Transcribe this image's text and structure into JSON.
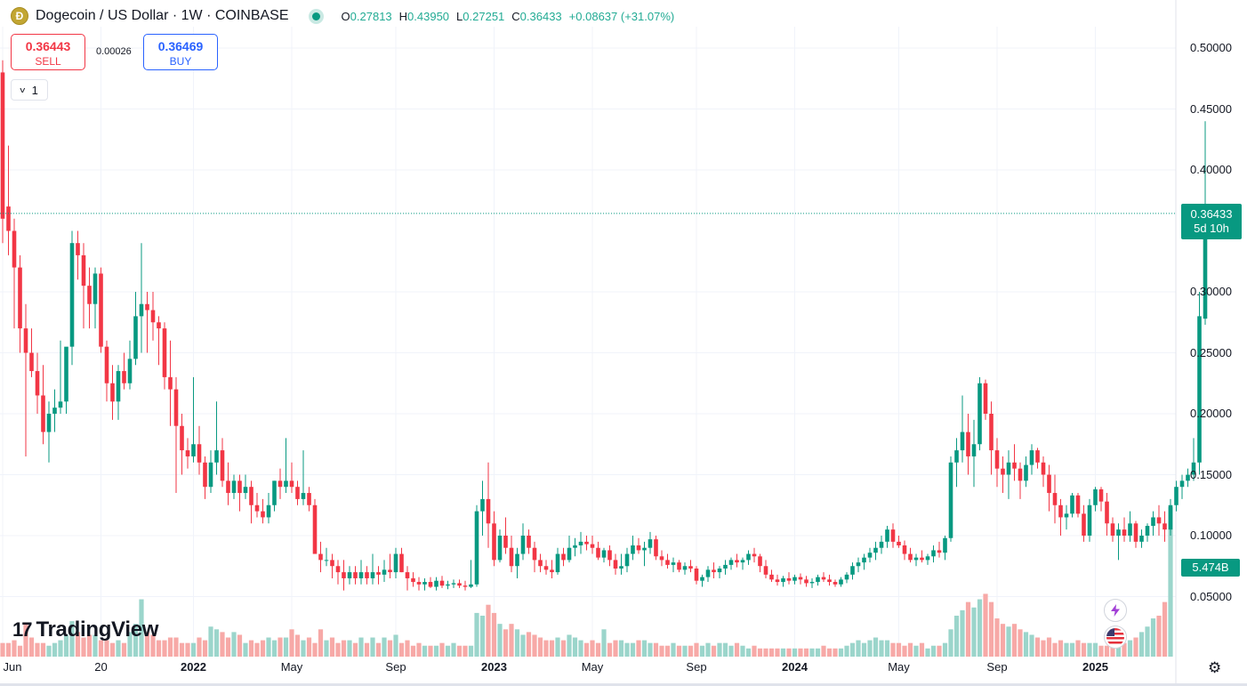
{
  "header": {
    "coin_icon": "dogecoin-icon",
    "symbol_title": "Dogecoin / US Dollar · 1W · COINBASE",
    "ohlc": {
      "o_label": "O",
      "o_value": "0.27813",
      "h_label": "H",
      "h_value": "0.43950",
      "l_label": "L",
      "l_value": "0.27251",
      "c_label": "C",
      "c_value": "0.36433",
      "change": "+0.08637 (+31.07%)"
    }
  },
  "trade": {
    "sell_price": "0.36443",
    "sell_label": "SELL",
    "spread": "0.00026",
    "buy_price": "0.36469",
    "buy_label": "BUY"
  },
  "indicator_toggle": "1",
  "price_tag": {
    "price": "0.36433",
    "countdown": "5d 10h"
  },
  "volume_tag": "5.474B",
  "logo_text": "TradingView",
  "colors": {
    "up": "#089981",
    "down": "#f23645",
    "up_volume": "#9bd5cb",
    "down_volume": "#f7a9a7",
    "grid": "#f0f3fa"
  },
  "chart_data": {
    "type": "candlestick",
    "title": "Dogecoin / US Dollar · 1W · COINBASE",
    "y_ticks": [
      "0.50000",
      "0.45000",
      "0.40000",
      "0.30000",
      "0.25000",
      "0.20000",
      "0.15000",
      "0.10000",
      "0.05000"
    ],
    "ylim": [
      0.0,
      0.525
    ],
    "x_ticks": [
      {
        "label": "Jun",
        "bold": false,
        "week": 0
      },
      {
        "label": "20",
        "bold": false,
        "week": 17
      },
      {
        "label": "2022",
        "bold": true,
        "week": 33
      },
      {
        "label": "May",
        "bold": false,
        "week": 50
      },
      {
        "label": "Sep",
        "bold": false,
        "week": 68
      },
      {
        "label": "2023",
        "bold": true,
        "week": 85
      },
      {
        "label": "May",
        "bold": false,
        "week": 102
      },
      {
        "label": "Sep",
        "bold": false,
        "week": 120
      },
      {
        "label": "2024",
        "bold": true,
        "week": 137
      },
      {
        "label": "May",
        "bold": false,
        "week": 155
      },
      {
        "label": "Sep",
        "bold": false,
        "week": 172
      },
      {
        "label": "2025",
        "bold": true,
        "week": 189
      }
    ],
    "grid": true,
    "legend": "none",
    "last_close": 0.36433,
    "candles": [
      [
        0.48,
        0.49,
        0.34,
        0.36
      ],
      [
        0.37,
        0.42,
        0.33,
        0.35
      ],
      [
        0.35,
        0.36,
        0.27,
        0.32
      ],
      [
        0.32,
        0.33,
        0.25,
        0.27
      ],
      [
        0.27,
        0.29,
        0.165,
        0.25
      ],
      [
        0.25,
        0.27,
        0.23,
        0.235
      ],
      [
        0.235,
        0.25,
        0.2,
        0.215
      ],
      [
        0.215,
        0.24,
        0.175,
        0.185
      ],
      [
        0.185,
        0.21,
        0.16,
        0.2
      ],
      [
        0.2,
        0.22,
        0.185,
        0.205
      ],
      [
        0.205,
        0.26,
        0.2,
        0.21
      ],
      [
        0.21,
        0.25,
        0.2,
        0.255
      ],
      [
        0.255,
        0.35,
        0.24,
        0.34
      ],
      [
        0.34,
        0.35,
        0.31,
        0.33
      ],
      [
        0.33,
        0.34,
        0.27,
        0.305
      ],
      [
        0.305,
        0.32,
        0.27,
        0.29
      ],
      [
        0.29,
        0.32,
        0.27,
        0.315
      ],
      [
        0.315,
        0.32,
        0.25,
        0.255
      ],
      [
        0.255,
        0.26,
        0.21,
        0.225
      ],
      [
        0.225,
        0.24,
        0.195,
        0.21
      ],
      [
        0.21,
        0.24,
        0.195,
        0.235
      ],
      [
        0.235,
        0.25,
        0.22,
        0.225
      ],
      [
        0.225,
        0.26,
        0.22,
        0.245
      ],
      [
        0.245,
        0.3,
        0.24,
        0.28
      ],
      [
        0.28,
        0.34,
        0.25,
        0.29
      ],
      [
        0.29,
        0.3,
        0.25,
        0.285
      ],
      [
        0.285,
        0.3,
        0.26,
        0.275
      ],
      [
        0.275,
        0.28,
        0.24,
        0.27
      ],
      [
        0.27,
        0.275,
        0.22,
        0.23
      ],
      [
        0.23,
        0.26,
        0.19,
        0.22
      ],
      [
        0.22,
        0.23,
        0.135,
        0.19
      ],
      [
        0.19,
        0.2,
        0.15,
        0.17
      ],
      [
        0.17,
        0.18,
        0.155,
        0.165
      ],
      [
        0.165,
        0.23,
        0.16,
        0.175
      ],
      [
        0.175,
        0.19,
        0.15,
        0.16
      ],
      [
        0.16,
        0.165,
        0.13,
        0.14
      ],
      [
        0.14,
        0.17,
        0.135,
        0.16
      ],
      [
        0.16,
        0.21,
        0.15,
        0.17
      ],
      [
        0.17,
        0.18,
        0.14,
        0.145
      ],
      [
        0.145,
        0.16,
        0.125,
        0.135
      ],
      [
        0.135,
        0.15,
        0.13,
        0.145
      ],
      [
        0.145,
        0.15,
        0.12,
        0.135
      ],
      [
        0.135,
        0.15,
        0.13,
        0.14
      ],
      [
        0.14,
        0.145,
        0.11,
        0.125
      ],
      [
        0.125,
        0.135,
        0.115,
        0.12
      ],
      [
        0.12,
        0.13,
        0.11,
        0.115
      ],
      [
        0.115,
        0.135,
        0.11,
        0.125
      ],
      [
        0.125,
        0.145,
        0.12,
        0.145
      ],
      [
        0.145,
        0.155,
        0.13,
        0.14
      ],
      [
        0.14,
        0.18,
        0.135,
        0.145
      ],
      [
        0.145,
        0.16,
        0.135,
        0.14
      ],
      [
        0.14,
        0.145,
        0.125,
        0.13
      ],
      [
        0.13,
        0.17,
        0.125,
        0.135
      ],
      [
        0.135,
        0.14,
        0.12,
        0.125
      ],
      [
        0.125,
        0.13,
        0.085,
        0.085
      ],
      [
        0.085,
        0.095,
        0.07,
        0.08
      ],
      [
        0.08,
        0.09,
        0.075,
        0.08
      ],
      [
        0.08,
        0.085,
        0.065,
        0.075
      ],
      [
        0.075,
        0.08,
        0.06,
        0.07
      ],
      [
        0.07,
        0.08,
        0.055,
        0.065
      ],
      [
        0.065,
        0.075,
        0.06,
        0.07
      ],
      [
        0.07,
        0.075,
        0.06,
        0.065
      ],
      [
        0.065,
        0.08,
        0.06,
        0.07
      ],
      [
        0.07,
        0.075,
        0.06,
        0.065
      ],
      [
        0.065,
        0.085,
        0.06,
        0.07
      ],
      [
        0.07,
        0.075,
        0.06,
        0.068
      ],
      [
        0.068,
        0.08,
        0.062,
        0.072
      ],
      [
        0.072,
        0.085,
        0.065,
        0.07
      ],
      [
        0.07,
        0.09,
        0.065,
        0.085
      ],
      [
        0.085,
        0.09,
        0.07,
        0.07
      ],
      [
        0.07,
        0.075,
        0.055,
        0.065
      ],
      [
        0.065,
        0.07,
        0.058,
        0.062
      ],
      [
        0.062,
        0.066,
        0.055,
        0.06
      ],
      [
        0.06,
        0.065,
        0.055,
        0.062
      ],
      [
        0.062,
        0.066,
        0.057,
        0.058
      ],
      [
        0.058,
        0.066,
        0.055,
        0.063
      ],
      [
        0.063,
        0.067,
        0.057,
        0.059
      ],
      [
        0.059,
        0.063,
        0.056,
        0.06
      ],
      [
        0.06,
        0.064,
        0.057,
        0.061
      ],
      [
        0.061,
        0.064,
        0.057,
        0.059
      ],
      [
        0.059,
        0.063,
        0.055,
        0.058
      ],
      [
        0.058,
        0.08,
        0.057,
        0.06
      ],
      [
        0.06,
        0.125,
        0.058,
        0.12
      ],
      [
        0.12,
        0.145,
        0.1,
        0.13
      ],
      [
        0.13,
        0.16,
        0.09,
        0.11
      ],
      [
        0.11,
        0.12,
        0.075,
        0.08
      ],
      [
        0.08,
        0.105,
        0.078,
        0.1
      ],
      [
        0.1,
        0.115,
        0.085,
        0.09
      ],
      [
        0.09,
        0.1,
        0.07,
        0.075
      ],
      [
        0.075,
        0.09,
        0.065,
        0.085
      ],
      [
        0.085,
        0.11,
        0.08,
        0.1
      ],
      [
        0.1,
        0.105,
        0.085,
        0.09
      ],
      [
        0.09,
        0.095,
        0.07,
        0.08
      ],
      [
        0.08,
        0.085,
        0.07,
        0.075
      ],
      [
        0.075,
        0.08,
        0.068,
        0.072
      ],
      [
        0.072,
        0.08,
        0.065,
        0.07
      ],
      [
        0.07,
        0.09,
        0.068,
        0.085
      ],
      [
        0.085,
        0.09,
        0.075,
        0.08
      ],
      [
        0.08,
        0.1,
        0.078,
        0.09
      ],
      [
        0.09,
        0.098,
        0.083,
        0.092
      ],
      [
        0.092,
        0.103,
        0.085,
        0.095
      ],
      [
        0.095,
        0.1,
        0.088,
        0.093
      ],
      [
        0.093,
        0.1,
        0.085,
        0.09
      ],
      [
        0.09,
        0.095,
        0.08,
        0.082
      ],
      [
        0.082,
        0.09,
        0.078,
        0.088
      ],
      [
        0.088,
        0.092,
        0.075,
        0.08
      ],
      [
        0.08,
        0.085,
        0.068,
        0.073
      ],
      [
        0.073,
        0.085,
        0.068,
        0.075
      ],
      [
        0.075,
        0.09,
        0.07,
        0.085
      ],
      [
        0.085,
        0.1,
        0.08,
        0.092
      ],
      [
        0.092,
        0.098,
        0.085,
        0.088
      ],
      [
        0.088,
        0.095,
        0.075,
        0.09
      ],
      [
        0.09,
        0.103,
        0.085,
        0.097
      ],
      [
        0.097,
        0.1,
        0.08,
        0.083
      ],
      [
        0.083,
        0.088,
        0.075,
        0.08
      ],
      [
        0.08,
        0.085,
        0.073,
        0.076
      ],
      [
        0.076,
        0.082,
        0.07,
        0.078
      ],
      [
        0.078,
        0.08,
        0.07,
        0.072
      ],
      [
        0.072,
        0.078,
        0.068,
        0.075
      ],
      [
        0.075,
        0.08,
        0.07,
        0.073
      ],
      [
        0.073,
        0.075,
        0.06,
        0.063
      ],
      [
        0.063,
        0.068,
        0.058,
        0.066
      ],
      [
        0.066,
        0.075,
        0.062,
        0.072
      ],
      [
        0.072,
        0.078,
        0.065,
        0.07
      ],
      [
        0.07,
        0.075,
        0.065,
        0.073
      ],
      [
        0.073,
        0.08,
        0.068,
        0.076
      ],
      [
        0.076,
        0.082,
        0.072,
        0.08
      ],
      [
        0.08,
        0.085,
        0.074,
        0.078
      ],
      [
        0.078,
        0.082,
        0.072,
        0.08
      ],
      [
        0.08,
        0.088,
        0.076,
        0.085
      ],
      [
        0.085,
        0.09,
        0.078,
        0.083
      ],
      [
        0.083,
        0.085,
        0.07,
        0.075
      ],
      [
        0.075,
        0.08,
        0.065,
        0.068
      ],
      [
        0.068,
        0.072,
        0.062,
        0.064
      ],
      [
        0.064,
        0.068,
        0.059,
        0.062
      ],
      [
        0.062,
        0.067,
        0.058,
        0.065
      ],
      [
        0.065,
        0.07,
        0.06,
        0.063
      ],
      [
        0.063,
        0.068,
        0.06,
        0.066
      ],
      [
        0.066,
        0.069,
        0.06,
        0.064
      ],
      [
        0.064,
        0.067,
        0.058,
        0.061
      ],
      [
        0.061,
        0.065,
        0.057,
        0.062
      ],
      [
        0.062,
        0.068,
        0.059,
        0.066
      ],
      [
        0.066,
        0.07,
        0.062,
        0.064
      ],
      [
        0.064,
        0.068,
        0.059,
        0.062
      ],
      [
        0.062,
        0.064,
        0.058,
        0.06
      ],
      [
        0.06,
        0.066,
        0.058,
        0.064
      ],
      [
        0.064,
        0.07,
        0.061,
        0.068
      ],
      [
        0.068,
        0.078,
        0.064,
        0.075
      ],
      [
        0.075,
        0.082,
        0.07,
        0.078
      ],
      [
        0.078,
        0.085,
        0.072,
        0.082
      ],
      [
        0.082,
        0.09,
        0.078,
        0.086
      ],
      [
        0.086,
        0.095,
        0.08,
        0.09
      ],
      [
        0.09,
        0.1,
        0.085,
        0.095
      ],
      [
        0.095,
        0.108,
        0.09,
        0.105
      ],
      [
        0.105,
        0.11,
        0.09,
        0.095
      ],
      [
        0.095,
        0.1,
        0.09,
        0.092
      ],
      [
        0.092,
        0.096,
        0.08,
        0.085
      ],
      [
        0.085,
        0.09,
        0.078,
        0.08
      ],
      [
        0.08,
        0.085,
        0.075,
        0.082
      ],
      [
        0.082,
        0.088,
        0.078,
        0.08
      ],
      [
        0.08,
        0.085,
        0.076,
        0.083
      ],
      [
        0.083,
        0.092,
        0.078,
        0.088
      ],
      [
        0.088,
        0.095,
        0.082,
        0.086
      ],
      [
        0.086,
        0.1,
        0.08,
        0.098
      ],
      [
        0.098,
        0.165,
        0.095,
        0.16
      ],
      [
        0.16,
        0.18,
        0.14,
        0.17
      ],
      [
        0.17,
        0.215,
        0.16,
        0.185
      ],
      [
        0.185,
        0.2,
        0.15,
        0.165
      ],
      [
        0.165,
        0.195,
        0.14,
        0.175
      ],
      [
        0.175,
        0.23,
        0.17,
        0.225
      ],
      [
        0.225,
        0.228,
        0.195,
        0.2
      ],
      [
        0.2,
        0.21,
        0.15,
        0.17
      ],
      [
        0.17,
        0.18,
        0.14,
        0.155
      ],
      [
        0.155,
        0.165,
        0.135,
        0.15
      ],
      [
        0.15,
        0.17,
        0.13,
        0.16
      ],
      [
        0.16,
        0.175,
        0.145,
        0.155
      ],
      [
        0.155,
        0.16,
        0.13,
        0.145
      ],
      [
        0.145,
        0.165,
        0.14,
        0.158
      ],
      [
        0.158,
        0.175,
        0.15,
        0.17
      ],
      [
        0.17,
        0.172,
        0.155,
        0.16
      ],
      [
        0.16,
        0.165,
        0.14,
        0.15
      ],
      [
        0.15,
        0.158,
        0.12,
        0.135
      ],
      [
        0.135,
        0.15,
        0.11,
        0.125
      ],
      [
        0.125,
        0.13,
        0.1,
        0.115
      ],
      [
        0.115,
        0.125,
        0.105,
        0.118
      ],
      [
        0.118,
        0.135,
        0.115,
        0.133
      ],
      [
        0.133,
        0.135,
        0.115,
        0.118
      ],
      [
        0.118,
        0.125,
        0.095,
        0.1
      ],
      [
        0.1,
        0.13,
        0.095,
        0.125
      ],
      [
        0.125,
        0.14,
        0.12,
        0.138
      ],
      [
        0.138,
        0.14,
        0.12,
        0.128
      ],
      [
        0.128,
        0.135,
        0.1,
        0.11
      ],
      [
        0.11,
        0.115,
        0.095,
        0.1
      ],
      [
        0.1,
        0.11,
        0.08,
        0.105
      ],
      [
        0.105,
        0.115,
        0.095,
        0.1
      ],
      [
        0.1,
        0.12,
        0.095,
        0.11
      ],
      [
        0.11,
        0.112,
        0.09,
        0.095
      ],
      [
        0.095,
        0.105,
        0.09,
        0.1
      ],
      [
        0.1,
        0.11,
        0.095,
        0.108
      ],
      [
        0.108,
        0.12,
        0.1,
        0.115
      ],
      [
        0.115,
        0.125,
        0.1,
        0.11
      ],
      [
        0.11,
        0.12,
        0.095,
        0.105
      ],
      [
        0.105,
        0.13,
        0.1,
        0.125
      ],
      [
        0.125,
        0.145,
        0.12,
        0.14
      ],
      [
        0.14,
        0.15,
        0.13,
        0.145
      ],
      [
        0.145,
        0.155,
        0.14,
        0.15
      ],
      [
        0.15,
        0.18,
        0.145,
        0.16
      ],
      [
        0.16,
        0.3,
        0.15,
        0.28
      ],
      [
        0.278,
        0.44,
        0.273,
        0.364
      ]
    ],
    "volumes": [
      0.5,
      0.5,
      0.6,
      0.4,
      1.2,
      0.7,
      0.5,
      0.5,
      0.4,
      0.5,
      0.6,
      0.8,
      1.3,
      0.9,
      0.7,
      0.8,
      0.8,
      0.6,
      0.6,
      0.5,
      0.6,
      0.5,
      0.9,
      1.2,
      2.1,
      0.9,
      0.8,
      0.6,
      0.6,
      0.7,
      0.7,
      0.5,
      0.5,
      0.5,
      0.7,
      0.6,
      1.1,
      1.0,
      0.9,
      0.7,
      0.9,
      0.8,
      0.5,
      0.6,
      0.5,
      0.6,
      0.7,
      0.6,
      0.7,
      0.7,
      1.0,
      0.8,
      0.6,
      0.7,
      0.5,
      1.0,
      0.6,
      0.7,
      0.5,
      0.6,
      0.6,
      0.5,
      0.7,
      0.5,
      0.7,
      0.5,
      0.7,
      0.6,
      0.8,
      0.5,
      0.6,
      0.4,
      0.5,
      0.4,
      0.4,
      0.4,
      0.5,
      0.4,
      0.5,
      0.4,
      0.4,
      0.4,
      1.6,
      1.5,
      1.9,
      1.6,
      1.2,
      1.0,
      1.2,
      1.0,
      0.8,
      0.9,
      0.8,
      0.7,
      0.6,
      0.6,
      0.7,
      0.6,
      0.8,
      0.7,
      0.6,
      0.5,
      0.6,
      0.5,
      1.0,
      0.5,
      0.6,
      0.6,
      0.5,
      0.5,
      0.6,
      0.6,
      0.5,
      0.5,
      0.4,
      0.4,
      0.5,
      0.4,
      0.4,
      0.4,
      0.5,
      0.4,
      0.5,
      0.4,
      0.5,
      0.5,
      0.4,
      0.5,
      0.4,
      0.3,
      0.4,
      0.3,
      0.3,
      0.3,
      0.3,
      0.3,
      0.3,
      0.3,
      0.3,
      0.3,
      0.3,
      0.3,
      0.4,
      0.3,
      0.3,
      0.3,
      0.4,
      0.5,
      0.6,
      0.5,
      0.6,
      0.7,
      0.6,
      0.6,
      0.5,
      0.5,
      0.4,
      0.5,
      0.4,
      0.5,
      0.3,
      0.4,
      0.4,
      0.5,
      1.0,
      1.5,
      1.7,
      2.0,
      1.8,
      2.1,
      2.3,
      2.0,
      1.4,
      1.2,
      1.1,
      1.2,
      1.0,
      0.9,
      0.8,
      0.7,
      0.6,
      0.7,
      0.5,
      0.6,
      0.5,
      0.5,
      0.6,
      0.5,
      0.5,
      0.5,
      0.4,
      0.4,
      0.4,
      0.4,
      0.5,
      0.6,
      0.7,
      0.9,
      1.1,
      1.4,
      1.5,
      2.0,
      5.474
    ]
  }
}
